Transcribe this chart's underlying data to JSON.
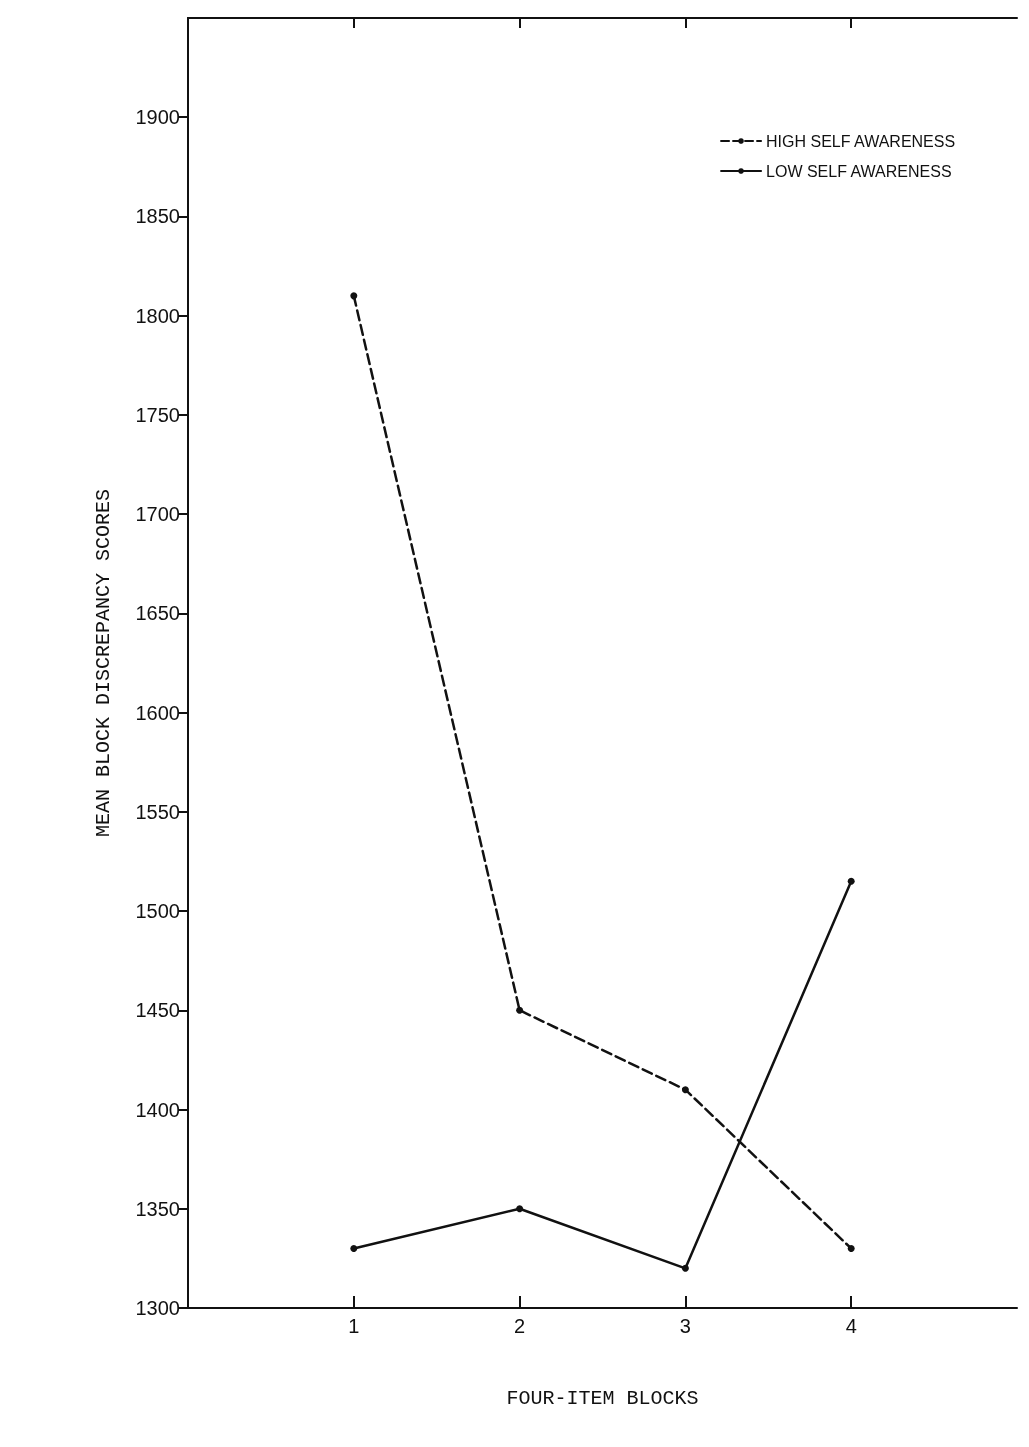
{
  "chart_data": {
    "type": "line",
    "xlabel": "FOUR-ITEM BLOCKS",
    "ylabel": "MEAN BLOCK DISCREPANCY SCORES",
    "x": [
      1,
      2,
      3,
      4
    ],
    "series": [
      {
        "name": "HIGH SELF AWARENESS",
        "color": "#111111",
        "line_style": "dashed",
        "values": [
          1810,
          1450,
          1410,
          1330
        ]
      },
      {
        "name": "LOW SELF AWARENESS",
        "color": "#111111",
        "line_style": "solid",
        "values": [
          1330,
          1350,
          1320,
          1515
        ]
      }
    ],
    "xlim": [
      0,
      5
    ],
    "xticks": [
      1,
      2,
      3,
      4
    ],
    "ylim": [
      1300,
      1950
    ],
    "yticks": [
      1300,
      1350,
      1400,
      1450,
      1500,
      1550,
      1600,
      1650,
      1700,
      1750,
      1800,
      1850,
      1900
    ],
    "marker": "circle",
    "grid": false,
    "legend": "top right"
  }
}
